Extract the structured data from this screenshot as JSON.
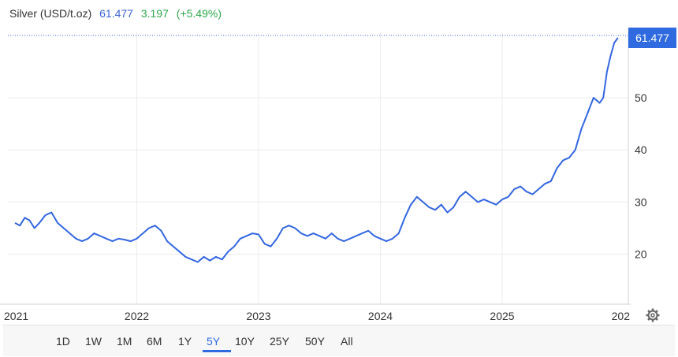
{
  "header": {
    "name": "Silver (USD/t.oz)",
    "price": "61.477",
    "change": "3.197",
    "change_pct": "(+5.49%)"
  },
  "price_tag": "61.477",
  "timeframes": [
    "1D",
    "1W",
    "1M",
    "6M",
    "1Y",
    "5Y",
    "10Y",
    "25Y",
    "50Y",
    "All"
  ],
  "active_timeframe": "5Y",
  "colors": {
    "line": "#3366e0",
    "price_tag": "#2f6ae0",
    "change": "#2ea84a",
    "price_text": "#3b62d6"
  },
  "chart_data": {
    "type": "line",
    "title": "Silver (USD/t.oz)",
    "xlabel": "",
    "ylabel": "",
    "x_ticks": [
      "2021",
      "2022",
      "2023",
      "2024",
      "2025",
      "202"
    ],
    "y_ticks": [
      20,
      30,
      40,
      50
    ],
    "ylim": [
      10,
      60.5
    ],
    "grid": true,
    "last_value": 61.477,
    "series": [
      {
        "name": "Silver",
        "x": [
          2021.0,
          2021.04,
          2021.08,
          2021.12,
          2021.16,
          2021.2,
          2021.25,
          2021.3,
          2021.35,
          2021.4,
          2021.45,
          2021.5,
          2021.55,
          2021.6,
          2021.65,
          2021.7,
          2021.75,
          2021.8,
          2021.85,
          2021.9,
          2021.95,
          2022.0,
          2022.05,
          2022.1,
          2022.15,
          2022.2,
          2022.25,
          2022.3,
          2022.35,
          2022.4,
          2022.45,
          2022.5,
          2022.55,
          2022.6,
          2022.65,
          2022.7,
          2022.75,
          2022.8,
          2022.85,
          2022.9,
          2022.95,
          2023.0,
          2023.05,
          2023.1,
          2023.15,
          2023.2,
          2023.25,
          2023.3,
          2023.35,
          2023.4,
          2023.45,
          2023.5,
          2023.55,
          2023.6,
          2023.65,
          2023.7,
          2023.75,
          2023.8,
          2023.85,
          2023.9,
          2023.95,
          2024.0,
          2024.05,
          2024.1,
          2024.15,
          2024.2,
          2024.25,
          2024.3,
          2024.35,
          2024.4,
          2024.45,
          2024.5,
          2024.55,
          2024.6,
          2024.65,
          2024.7,
          2024.75,
          2024.8,
          2024.85,
          2024.9,
          2024.95,
          2025.0,
          2025.05,
          2025.1,
          2025.15,
          2025.2,
          2025.25,
          2025.3,
          2025.35,
          2025.4,
          2025.45,
          2025.5,
          2025.55,
          2025.6,
          2025.65,
          2025.7,
          2025.75,
          2025.8,
          2025.83,
          2025.86,
          2025.89,
          2025.92,
          2025.95
        ],
        "y": [
          26.0,
          25.5,
          27.0,
          26.5,
          25.0,
          26.0,
          27.5,
          28.0,
          26.0,
          25.0,
          24.0,
          23.0,
          22.5,
          23.0,
          24.0,
          23.5,
          23.0,
          22.5,
          23.0,
          22.8,
          22.5,
          23.0,
          24.0,
          25.0,
          25.5,
          24.5,
          22.5,
          21.5,
          20.5,
          19.5,
          19.0,
          18.5,
          19.5,
          18.8,
          19.5,
          19.0,
          20.5,
          21.5,
          23.0,
          23.5,
          24.0,
          23.8,
          22.0,
          21.5,
          23.0,
          25.0,
          25.5,
          25.0,
          24.0,
          23.5,
          24.0,
          23.5,
          23.0,
          24.0,
          23.0,
          22.5,
          23.0,
          23.5,
          24.0,
          24.5,
          23.5,
          23.0,
          22.5,
          23.0,
          24.0,
          27.0,
          29.5,
          31.0,
          30.0,
          29.0,
          28.5,
          29.5,
          28.0,
          29.0,
          31.0,
          32.0,
          31.0,
          30.0,
          30.5,
          30.0,
          29.5,
          30.5,
          31.0,
          32.5,
          33.0,
          32.0,
          31.5,
          32.5,
          33.5,
          34.0,
          36.5,
          38.0,
          38.5,
          40.0,
          44.0,
          47.0,
          50.0,
          49.0,
          50.0,
          55.0,
          58.0,
          60.5,
          61.477
        ]
      }
    ]
  }
}
